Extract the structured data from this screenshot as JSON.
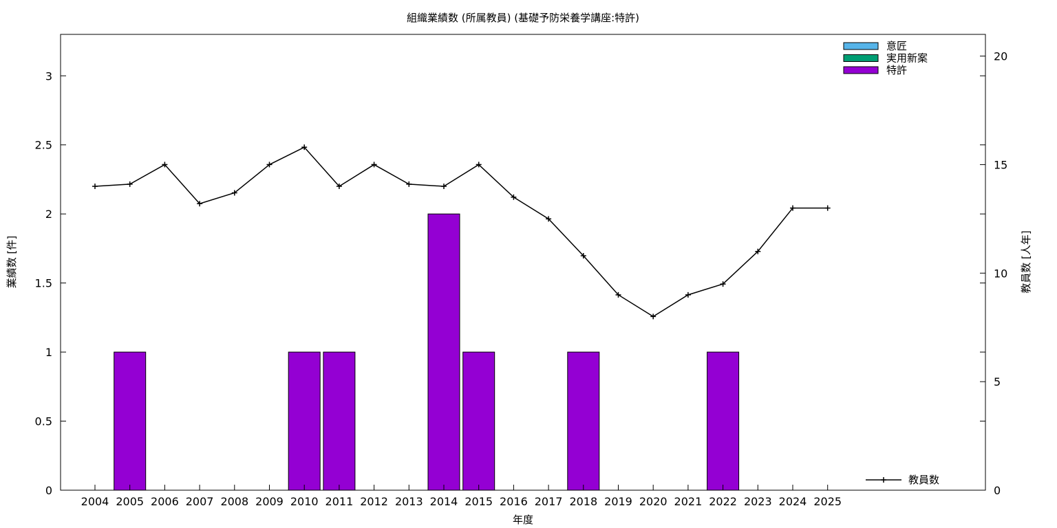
{
  "chart_data": {
    "type": "bar",
    "title": "組織業績数 (所属教員) (基礎予防栄養学講座:特許)",
    "xlabel": "年度",
    "ylabel": "業績数 [件]",
    "y2label": "教員数 [人年]",
    "categories": [
      "2004",
      "2005",
      "2006",
      "2007",
      "2008",
      "2009",
      "2010",
      "2011",
      "2012",
      "2013",
      "2014",
      "2015",
      "2016",
      "2017",
      "2018",
      "2019",
      "2020",
      "2021",
      "2022",
      "2023",
      "2024",
      "2025"
    ],
    "ylim": [
      0,
      3.3
    ],
    "y2lim": [
      0,
      21
    ],
    "yticks": [
      "0",
      "0.5",
      "1",
      "1.5",
      "2",
      "2.5",
      "3"
    ],
    "y2ticks": [
      "0",
      "5",
      "10",
      "15",
      "20"
    ],
    "grid": false,
    "legend_position": "top-right",
    "series": [
      {
        "name": "意匠",
        "kind": "bar",
        "axis": "y",
        "color": "#56b4e9",
        "values": [
          0,
          0,
          0,
          0,
          0,
          0,
          0,
          0,
          0,
          0,
          0,
          0,
          0,
          0,
          0,
          0,
          0,
          0,
          0,
          0,
          0,
          0
        ]
      },
      {
        "name": "実用新案",
        "kind": "bar",
        "axis": "y",
        "color": "#009e73",
        "values": [
          0,
          0,
          0,
          0,
          0,
          0,
          0,
          0,
          0,
          0,
          0,
          0,
          0,
          0,
          0,
          0,
          0,
          0,
          0,
          0,
          0,
          0
        ]
      },
      {
        "name": "特許",
        "kind": "bar",
        "axis": "y",
        "color": "#9400d3",
        "values": [
          0,
          1,
          0,
          0,
          0,
          0,
          1,
          1,
          0,
          0,
          2,
          1,
          0,
          0,
          1,
          0,
          0,
          0,
          1,
          0,
          0,
          0
        ]
      },
      {
        "name": "教員数",
        "kind": "line",
        "axis": "y2",
        "color": "#000000",
        "values": [
          14,
          14.1,
          15,
          13.2,
          13.7,
          15,
          15.8,
          14,
          15,
          14.1,
          14,
          15,
          13.5,
          12.5,
          10.8,
          9,
          8,
          9,
          9.5,
          11,
          13,
          13
        ]
      }
    ]
  }
}
